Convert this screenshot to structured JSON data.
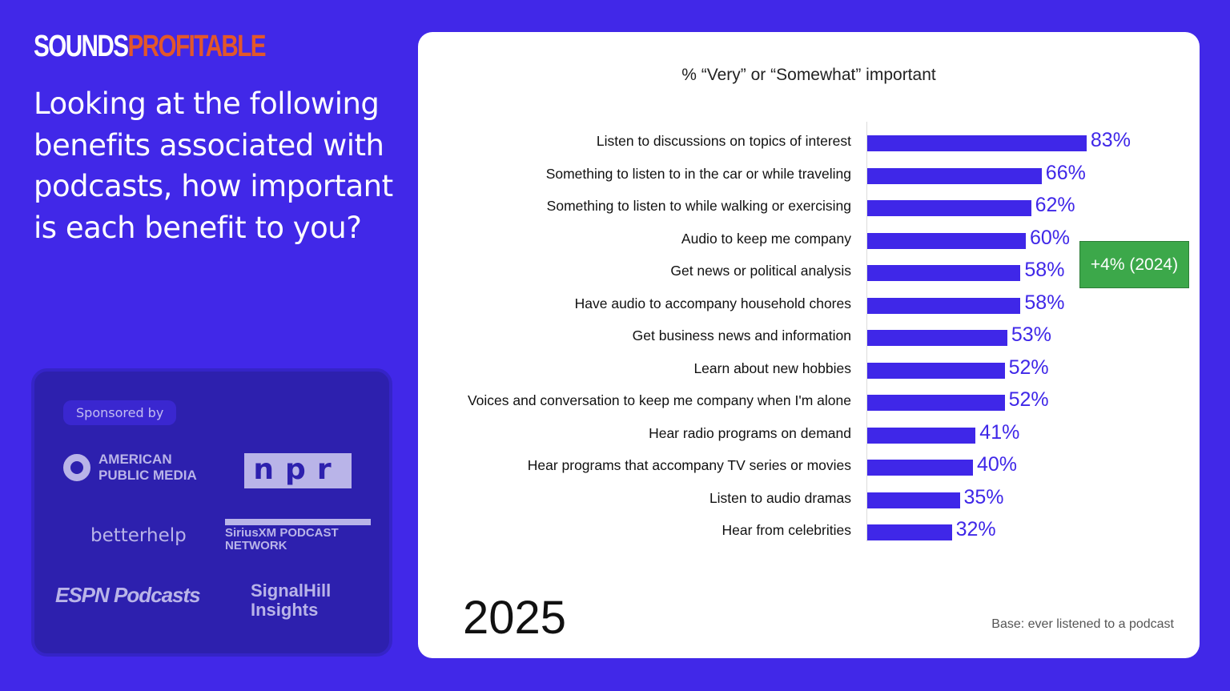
{
  "brand": {
    "part1": "SOUNDS",
    "part2": "PROFITABLE"
  },
  "question": "Looking at the following benefits associated with podcasts, how important is each benefit to you?",
  "sponsors": {
    "label": "Sponsored by",
    "logos": [
      "AMERICAN PUBLIC MEDIA",
      "npr",
      "betterhelp",
      "SiriusXM PODCAST NETWORK",
      "ESPN Podcasts",
      "SignalHill Insights"
    ]
  },
  "colors": {
    "background": "#4128e8",
    "bar": "#3f27e8",
    "badge": "#3ca84a",
    "brand_accent": "#e2572a"
  },
  "chart_data": {
    "type": "bar",
    "orientation": "horizontal",
    "title": "% “Very” or “Somewhat” important",
    "categories": [
      "Listen to discussions on topics of interest",
      "Something to listen to in the car or while traveling",
      "Something to listen to while walking or exercising",
      "Audio to keep me company",
      "Get news or political analysis",
      "Have audio to accompany household chores",
      "Get business news and information",
      "Learn about new hobbies",
      "Voices and conversation to keep me company when I'm alone",
      "Hear radio programs on demand",
      "Hear programs that accompany TV series or movies",
      "Listen to audio dramas",
      "Hear from celebrities"
    ],
    "values": [
      83,
      66,
      62,
      60,
      58,
      58,
      53,
      52,
      52,
      41,
      40,
      35,
      32
    ],
    "value_labels": [
      "83%",
      "66%",
      "62%",
      "60%",
      "58%",
      "58%",
      "53%",
      "52%",
      "52%",
      "41%",
      "40%",
      "35%",
      "32%"
    ],
    "annotation": {
      "category": "Get news or political analysis",
      "text": "+4% (2024)"
    },
    "year": "2025",
    "footnote": "Base: ever listened to a podcast"
  }
}
